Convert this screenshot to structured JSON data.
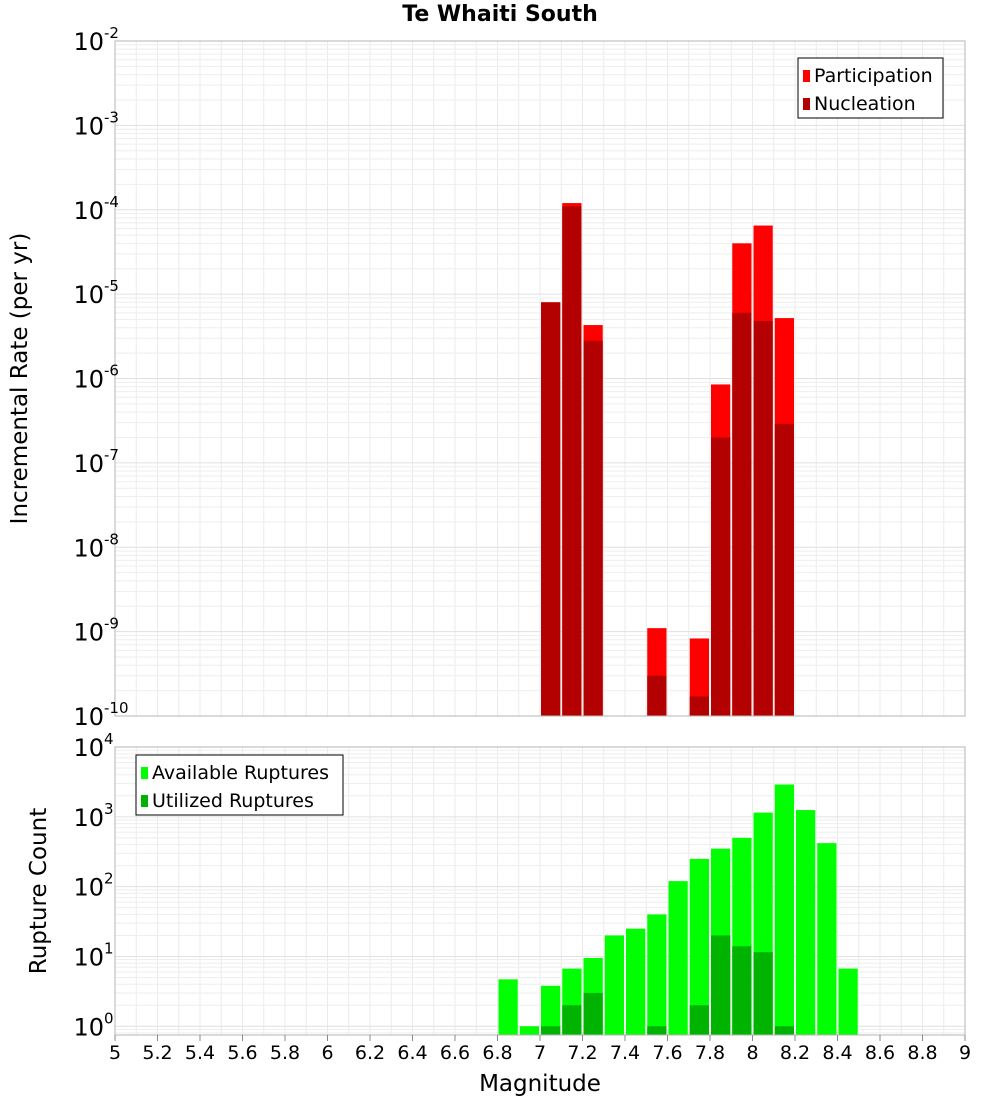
{
  "title": "Te Whaiti South",
  "chart_data": [
    {
      "type": "bar",
      "ylabel": "Incremental Rate (per yr)",
      "xlabel": "",
      "log_y": true,
      "ylim": [
        1e-10,
        0.01
      ],
      "xlim": [
        5,
        9
      ],
      "grid": true,
      "legend_position": "top-right",
      "y_tick_exponents": [
        "-2",
        "-3",
        "-4",
        "-5",
        "-6",
        "-7",
        "-8",
        "-9",
        "-10"
      ],
      "y_tick_base": "10",
      "series": [
        {
          "name": "Participation",
          "color": "#ff0000",
          "x": [
            7.05,
            7.15,
            7.25,
            7.55,
            7.75,
            7.85,
            7.95,
            8.05,
            8.15
          ],
          "values": [
            8e-06,
            0.00012,
            4.3e-06,
            1.1e-09,
            8.3e-10,
            8.5e-07,
            4e-05,
            6.5e-05,
            5.2e-06
          ]
        },
        {
          "name": "Nucleation",
          "color": "#b30000",
          "x": [
            7.05,
            7.15,
            7.25,
            7.55,
            7.75,
            7.85,
            7.95,
            8.05,
            8.15
          ],
          "values": [
            8e-06,
            0.00011,
            2.8e-06,
            3e-10,
            1.7e-10,
            2e-07,
            6e-06,
            4.8e-06,
            2.9e-07
          ]
        }
      ]
    },
    {
      "type": "bar",
      "ylabel": "Rupture Count",
      "xlabel": "Magnitude",
      "log_y": true,
      "ylim": [
        0.75,
        10000
      ],
      "xlim": [
        5,
        9
      ],
      "grid": true,
      "legend_position": "top-left",
      "y_tick_exponents": [
        "4",
        "3",
        "2",
        "1",
        "0"
      ],
      "y_tick_base": "10",
      "x_ticks": [
        "5",
        "5.2",
        "5.4",
        "5.6",
        "5.8",
        "6",
        "6.2",
        "6.4",
        "6.6",
        "6.8",
        "7",
        "7.2",
        "7.4",
        "7.6",
        "7.8",
        "8",
        "8.2",
        "8.4",
        "8.6",
        "8.8",
        "9"
      ],
      "series": [
        {
          "name": "Available Ruptures",
          "color": "#00ff00",
          "x": [
            6.85,
            6.95,
            7.05,
            7.15,
            7.25,
            7.35,
            7.45,
            7.55,
            7.65,
            7.75,
            7.85,
            7.95,
            8.05,
            8.15,
            8.25,
            8.35,
            8.45
          ],
          "values": [
            4.7,
            1.0,
            3.8,
            6.7,
            9.5,
            20,
            25,
            40,
            120,
            250,
            350,
            500,
            1150,
            2900,
            1250,
            420,
            6.7
          ]
        },
        {
          "name": "Utilized Ruptures",
          "color": "#00b300",
          "x": [
            6.85,
            6.95,
            7.05,
            7.15,
            7.25,
            7.35,
            7.45,
            7.55,
            7.65,
            7.75,
            7.85,
            7.95,
            8.05,
            8.15,
            8.25,
            8.35,
            8.45
          ],
          "values": [
            0,
            0,
            1.0,
            2.0,
            3.0,
            0,
            0,
            1.0,
            0,
            2.0,
            20,
            14,
            11.5,
            1.0,
            0,
            0,
            0
          ]
        }
      ]
    }
  ]
}
